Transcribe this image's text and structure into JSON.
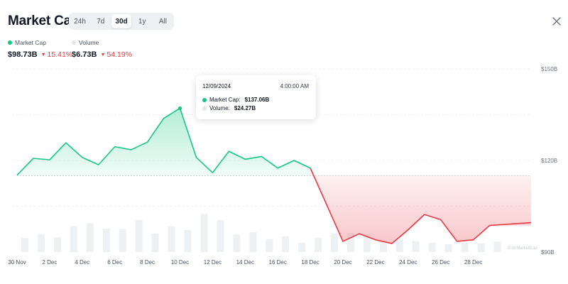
{
  "header": {
    "title": "Market Cap",
    "close_icon": "close-icon"
  },
  "range_tabs": [
    {
      "label": "24h",
      "active": false
    },
    {
      "label": "7d",
      "active": false
    },
    {
      "label": "30d",
      "active": true
    },
    {
      "label": "1y",
      "active": false
    },
    {
      "label": "All",
      "active": false
    }
  ],
  "stats": {
    "market_cap": {
      "label": "Market Cap",
      "value": "$98.73B",
      "change": "15.41%",
      "direction": "down"
    },
    "volume": {
      "label": "Volume",
      "value": "$6.73B",
      "change": "54.19%",
      "direction": "down"
    }
  },
  "tooltip": {
    "date": "12/09/2024",
    "time": "4:00:00 AM",
    "market_cap_label": "Market Cap:",
    "market_cap_value": "$137.06B",
    "volume_label": "Volume:",
    "volume_value": "$24.27B"
  },
  "watermark": "CoinMarketCap",
  "colors": {
    "up": "#16c784",
    "down": "#ea3943",
    "volume_bar": "#eef1f4",
    "volume_dot": "#e5e7eb"
  },
  "chart_data": {
    "type": "area",
    "baseline": 115,
    "ylim": [
      90,
      150
    ],
    "y_ticks": [
      "$150B",
      "$120B",
      "$90B"
    ],
    "y_tick_values": [
      150,
      120,
      90
    ],
    "x_tick_labels": [
      "30 Nov",
      "2 Dec",
      "4 Dec",
      "6 Dec",
      "8 Dec",
      "10 Dec",
      "12 Dec",
      "14 Dec",
      "16 Dec",
      "18 Dec",
      "20 Dec",
      "22 Dec",
      "24 Dec",
      "26 Dec",
      "28 Dec"
    ],
    "x_tick_days": [
      0,
      2,
      4,
      6,
      8,
      10,
      12,
      14,
      16,
      18,
      20,
      22,
      24,
      26,
      28
    ],
    "market_cap_series": {
      "name": "Market Cap",
      "x": [
        0,
        1,
        2,
        3,
        4,
        5,
        6,
        7,
        8,
        9,
        10,
        11,
        12,
        13,
        14,
        15,
        16,
        17,
        18,
        20,
        21,
        22,
        23,
        24,
        25,
        26,
        27,
        28,
        29
      ],
      "values": [
        115.2,
        120.7,
        120.2,
        125.8,
        121.0,
        118.6,
        124.5,
        123.5,
        126.0,
        133.8,
        137.1,
        121.0,
        116.0,
        123.0,
        120.4,
        121.3,
        117.5,
        120.0,
        117.5,
        93.5,
        96.0,
        94.0,
        92.8,
        97.3,
        102.3,
        100.6,
        93.5,
        94.0,
        98.7
      ]
    },
    "volume_series": {
      "name": "Volume",
      "x": [
        0,
        1,
        2,
        3,
        4,
        5,
        6,
        7,
        8,
        9,
        10,
        11,
        12,
        13,
        14,
        15,
        16,
        17,
        18,
        19,
        20,
        21,
        22,
        23,
        24,
        25,
        26,
        27,
        28,
        29
      ],
      "values": [
        9.0,
        11.5,
        9.5,
        16.5,
        18.5,
        15.0,
        14.8,
        20.5,
        11.8,
        16.5,
        14.2,
        24.3,
        20.5,
        11.2,
        12.8,
        8.3,
        10.0,
        6.0,
        9.0,
        11.8,
        12.0,
        11.3,
        7.5,
        8.0,
        7.0,
        6.0,
        5.0,
        6.0,
        5.5,
        6.7
      ]
    }
  }
}
